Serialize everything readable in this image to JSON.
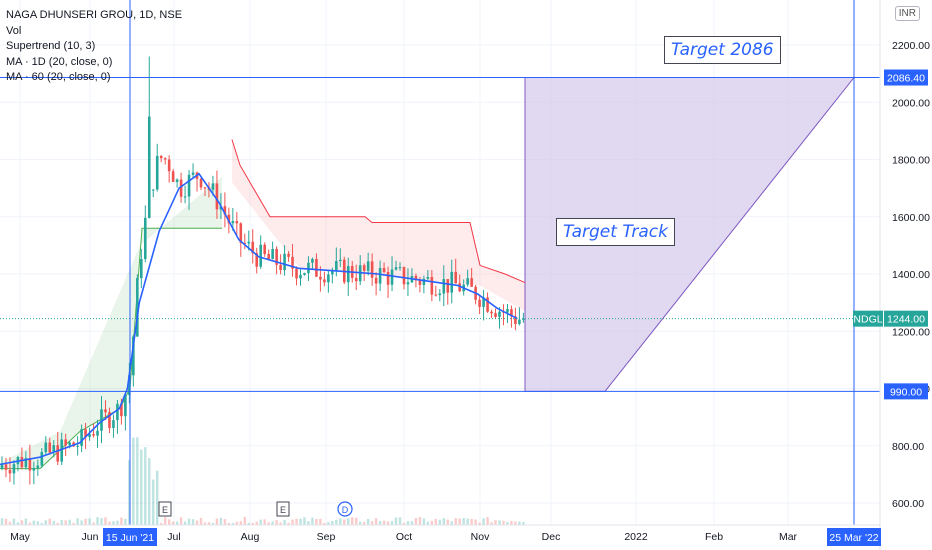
{
  "legend": {
    "symbol": "NAGA DHUNSERI GROU, 1D, NSE",
    "vol": "Vol",
    "supertrend": "Supertrend (10, 3)",
    "ma1": "MA · 1D (20, close, 0)",
    "ma2": "MA · 60 (20, close, 0)"
  },
  "currency_button": "INR",
  "annotations": {
    "target": "Target 2086",
    "track": "Target Track"
  },
  "colors": {
    "up": "#26a69a",
    "down": "#ef5350",
    "ma": "#2962ff",
    "supertrend_up": "#4caf50",
    "supertrend_down": "#f23645",
    "target_fill": "#d1c4e9",
    "line": "#2962ff",
    "axis_text": "#131722"
  },
  "chart_data": {
    "type": "candlestick",
    "ylim": [
      560,
      2300
    ],
    "y_ticks": [
      "2200.00",
      "2000.00",
      "1800.00",
      "1600.00",
      "1400.00",
      "1200.00",
      "1000.00",
      "800.00",
      "600.00"
    ],
    "y_tick_values": [
      2200,
      2000,
      1800,
      1600,
      1400,
      1200,
      1000,
      800,
      600
    ],
    "x_ticks": [
      "May",
      "Jun",
      "Jul",
      "Aug",
      "Sep",
      "Oct",
      "Nov",
      "Dec",
      "2022",
      "Feb",
      "Mar"
    ],
    "x_highlight_start": "15 Jun '21",
    "x_highlight_end": "25 Mar '22",
    "price_labels": [
      {
        "label": "2086.40",
        "value": 2086.4
      },
      {
        "label": "NDGL",
        "value": 1244
      },
      {
        "label": "1244.00",
        "value": 1244
      },
      {
        "label": "990.00",
        "value": 990
      }
    ],
    "horizontal_levels": [
      2086.4,
      990
    ],
    "last_close": 1244,
    "ma_series": [
      {
        "week": 0,
        "value": 735
      },
      {
        "week": 2,
        "value": 760
      },
      {
        "week": 4,
        "value": 810
      },
      {
        "week": 5,
        "value": 880
      },
      {
        "week": 6,
        "value": 930
      },
      {
        "week": 6.4,
        "value": 1000
      },
      {
        "week": 7,
        "value": 1300
      },
      {
        "week": 8,
        "value": 1550
      },
      {
        "week": 9,
        "value": 1700
      },
      {
        "week": 10,
        "value": 1750
      },
      {
        "week": 11,
        "value": 1650
      },
      {
        "week": 12,
        "value": 1520
      },
      {
        "week": 13,
        "value": 1460
      },
      {
        "week": 15,
        "value": 1420
      },
      {
        "week": 17,
        "value": 1410
      },
      {
        "week": 19,
        "value": 1400
      },
      {
        "week": 21,
        "value": 1380
      },
      {
        "week": 23,
        "value": 1360
      },
      {
        "week": 24,
        "value": 1330
      },
      {
        "week": 25,
        "value": 1280
      },
      {
        "week": 26,
        "value": 1244
      }
    ],
    "target_projection": {
      "from_value": 990,
      "to_value": 2086.4
    }
  }
}
